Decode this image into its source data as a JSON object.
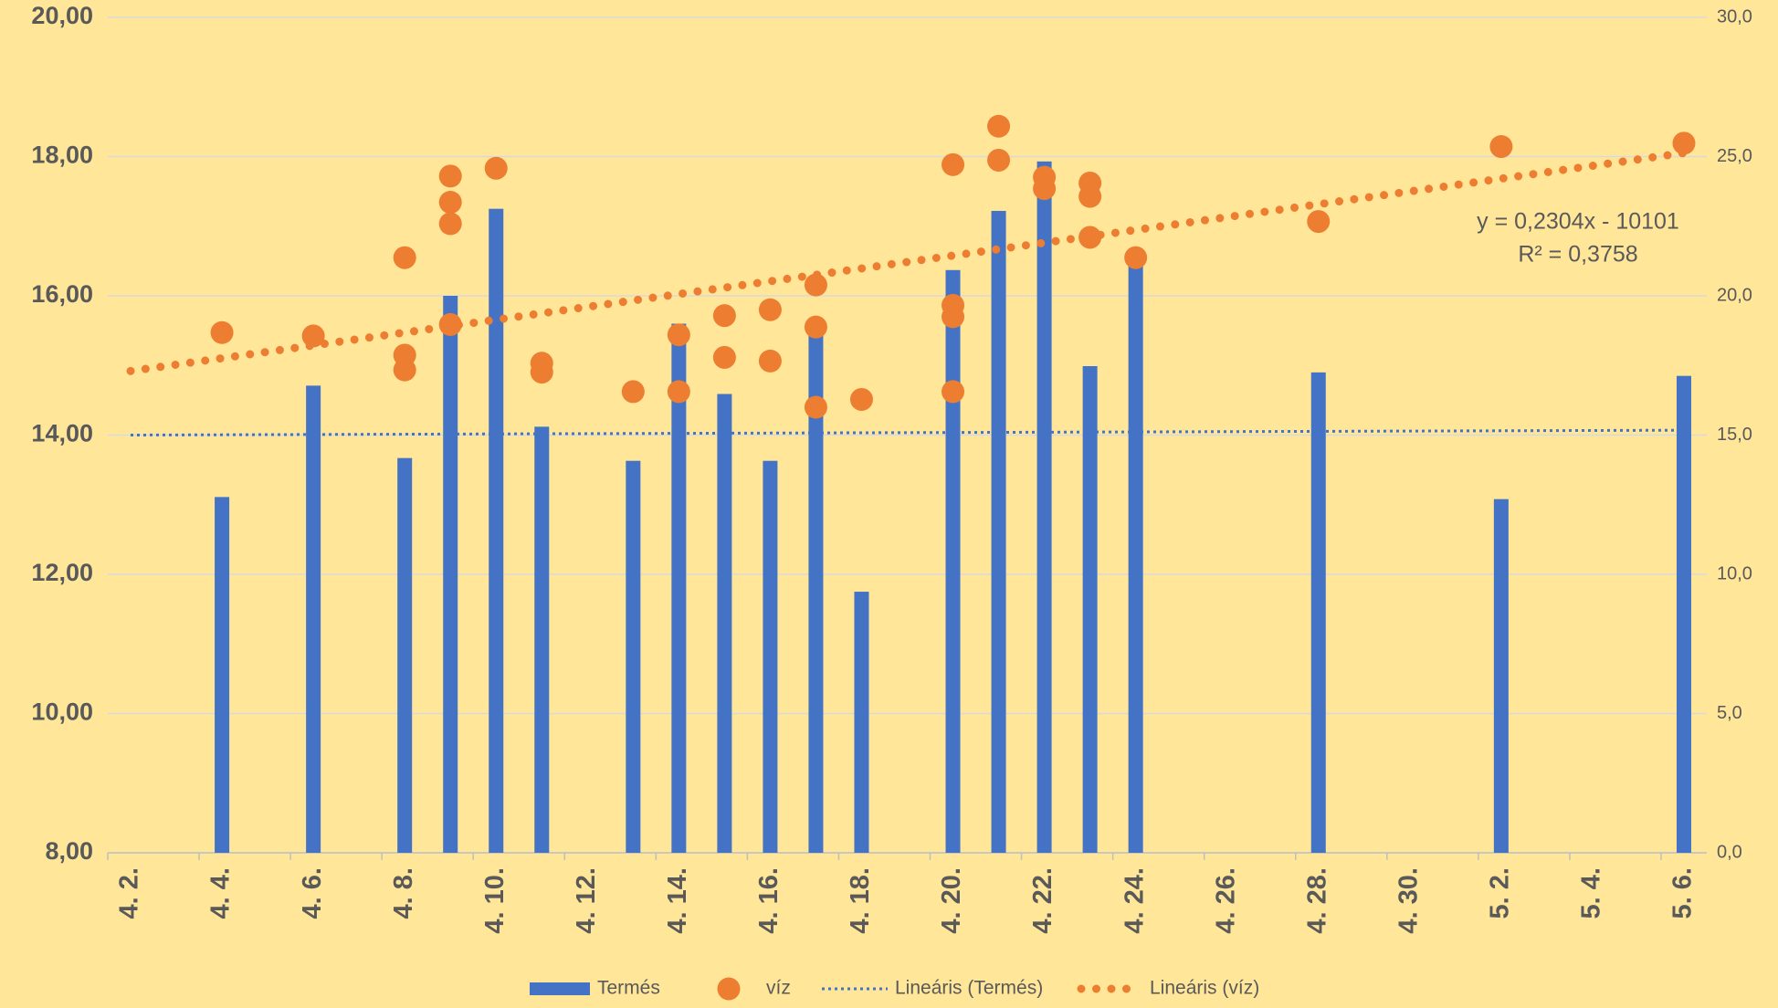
{
  "chart_data": {
    "type": "bar-scatter",
    "categories": [
      "4. 2.",
      null,
      "4. 4.",
      null,
      "4. 6.",
      null,
      "4. 8.",
      null,
      "4. 10.",
      null,
      "4. 12.",
      null,
      "4. 14.",
      null,
      "4. 16.",
      null,
      "4. 18.",
      null,
      "4. 20.",
      null,
      "4. 22.",
      null,
      "4. 24.",
      null,
      "4. 26.",
      null,
      "4. 28.",
      null,
      "4. 30.",
      null,
      "5. 2.",
      null,
      "5. 4.",
      null,
      "5. 6."
    ],
    "series": [
      {
        "name": "Termés",
        "type": "bar",
        "color": "#4472C4",
        "values": [
          null,
          null,
          13.11,
          null,
          14.71,
          null,
          13.67,
          16.0,
          17.25,
          14.12,
          null,
          13.63,
          15.6,
          14.59,
          13.63,
          15.6,
          11.75,
          null,
          16.37,
          17.22,
          17.93,
          14.99,
          16.5,
          null,
          null,
          null,
          14.9,
          null,
          null,
          null,
          13.08,
          null,
          null,
          null,
          14.85
        ]
      },
      {
        "name": "víz",
        "type": "scatter",
        "axis": "y2",
        "color": "#ED7D31",
        "values": [
          null,
          null,
          [
            18.68
          ],
          null,
          [
            18.56
          ],
          null,
          [
            21.37,
            17.87,
            17.34
          ],
          [
            24.3,
            23.36,
            22.59,
            18.97
          ],
          [
            24.58
          ],
          [
            17.58,
            17.26
          ],
          null,
          [
            16.56
          ],
          [
            18.6,
            16.56
          ],
          [
            19.29,
            17.79
          ],
          [
            19.5,
            17.66
          ],
          [
            20.39,
            18.88,
            16.0
          ],
          [
            16.28
          ],
          null,
          [
            24.71,
            19.66,
            19.25,
            16.56
          ],
          [
            26.09,
            24.87
          ],
          [
            24.26,
            23.85
          ],
          [
            24.05,
            23.57,
            22.1
          ],
          [
            21.37
          ],
          null,
          null,
          null,
          [
            22.67
          ],
          null,
          null,
          null,
          [
            25.36
          ],
          null,
          null,
          null,
          [
            25.48
          ]
        ]
      }
    ],
    "trendlines": [
      {
        "name": "Lineáris (Termés)",
        "color": "#4472C4",
        "start": 14.0,
        "end": 14.07
      },
      {
        "name": "Lineáris (víz)",
        "color": "#ED7D31",
        "axis": "y2",
        "start": 17.3,
        "end": 25.13
      }
    ],
    "annotations": [
      "y = 0,2304x - 10101",
      "R² = 0,3758"
    ],
    "ylim": [
      8,
      20
    ],
    "yticks": [
      {
        "value": 8,
        "label": "8,00"
      },
      {
        "value": 10,
        "label": "10,00"
      },
      {
        "value": 12,
        "label": "12,00"
      },
      {
        "value": 14,
        "label": "14,00"
      },
      {
        "value": 16,
        "label": "16,00"
      },
      {
        "value": 18,
        "label": "18,00"
      },
      {
        "value": 20,
        "label": "20,00"
      }
    ],
    "y2lim": [
      0,
      30
    ],
    "y2ticks": [
      {
        "value": 0,
        "label": "0,0"
      },
      {
        "value": 5,
        "label": "5,0"
      },
      {
        "value": 10,
        "label": "10,0"
      },
      {
        "value": 15,
        "label": "15,0"
      },
      {
        "value": 20,
        "label": "20,0"
      },
      {
        "value": 25,
        "label": "25,0"
      },
      {
        "value": 30,
        "label": "30,0"
      }
    ],
    "grid": true,
    "legend": "bottom"
  }
}
